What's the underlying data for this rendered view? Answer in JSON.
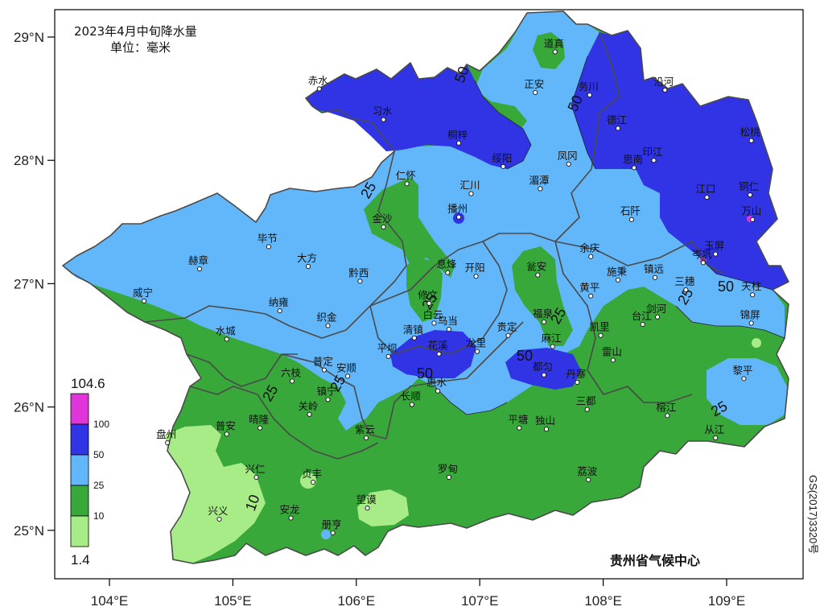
{
  "title": {
    "line1": "2023年4月中旬降水量",
    "line2": "单位：毫米"
  },
  "source": "贵州省气候中心",
  "map_code": "GS(2017)3320号",
  "colors": {
    "bg": "#ffffff",
    "c_1_10": "#a8ec88",
    "c_10_25": "#39a83a",
    "c_25_50": "#62b7fb",
    "c_50_100": "#3134e4",
    "c_100_max": "#e035d8",
    "border": "#555555"
  },
  "axes": {
    "x_ticks": [
      "104°E",
      "105°E",
      "106°E",
      "107°E",
      "108°E",
      "109°E"
    ],
    "y_ticks": [
      "29°N",
      "28°N",
      "27°N",
      "26°N",
      "25°N"
    ],
    "lon_range": [
      103.55,
      109.6
    ],
    "lat_range": [
      24.63,
      29.3
    ]
  },
  "legend": {
    "max": "104.6",
    "min": "1.4",
    "breaks": [
      "100",
      "50",
      "25",
      "10"
    ]
  },
  "contour_labels": [
    "50",
    "50",
    "50",
    "50",
    "50",
    "25",
    "25",
    "25",
    "25",
    "25",
    "25",
    "10",
    "25"
  ],
  "stations": [
    {
      "name": "赤水",
      "lon": 105.7,
      "lat": 28.58
    },
    {
      "name": "习水",
      "lon": 106.22,
      "lat": 28.33
    },
    {
      "name": "桐梓",
      "lon": 106.83,
      "lat": 28.14
    },
    {
      "name": "绥阳",
      "lon": 107.19,
      "lat": 27.95
    },
    {
      "name": "正安",
      "lon": 107.45,
      "lat": 28.55
    },
    {
      "name": "道真",
      "lon": 107.61,
      "lat": 28.88
    },
    {
      "name": "务川",
      "lon": 107.89,
      "lat": 28.53
    },
    {
      "name": "沿河",
      "lon": 108.5,
      "lat": 28.57
    },
    {
      "name": "德江",
      "lon": 108.12,
      "lat": 28.26
    },
    {
      "name": "凤冈",
      "lon": 107.72,
      "lat": 27.97
    },
    {
      "name": "湄潭",
      "lon": 107.49,
      "lat": 27.77
    },
    {
      "name": "汇川",
      "lon": 106.93,
      "lat": 27.73
    },
    {
      "name": "仁怀",
      "lon": 106.41,
      "lat": 27.81
    },
    {
      "name": "播州",
      "lon": 106.83,
      "lat": 27.54
    },
    {
      "name": "印江",
      "lon": 108.41,
      "lat": 28.0
    },
    {
      "name": "思南",
      "lon": 108.25,
      "lat": 27.94
    },
    {
      "name": "松桃",
      "lon": 109.2,
      "lat": 28.16
    },
    {
      "name": "江口",
      "lon": 108.84,
      "lat": 27.7
    },
    {
      "name": "铜仁",
      "lon": 109.19,
      "lat": 27.72
    },
    {
      "name": "万山",
      "lon": 109.21,
      "lat": 27.52
    },
    {
      "name": "石阡",
      "lon": 108.23,
      "lat": 27.52
    },
    {
      "name": "余庆",
      "lon": 107.9,
      "lat": 27.22
    },
    {
      "name": "玉屏",
      "lon": 108.91,
      "lat": 27.24
    },
    {
      "name": "岑巩",
      "lon": 108.81,
      "lat": 27.17
    },
    {
      "name": "施秉",
      "lon": 108.12,
      "lat": 27.03
    },
    {
      "name": "镇远",
      "lon": 108.42,
      "lat": 27.05
    },
    {
      "name": "三穗",
      "lon": 108.67,
      "lat": 26.95
    },
    {
      "name": "天柱",
      "lon": 109.21,
      "lat": 26.91
    },
    {
      "name": "黄平",
      "lon": 107.9,
      "lat": 26.9
    },
    {
      "name": "台江",
      "lon": 108.32,
      "lat": 26.67
    },
    {
      "name": "剑河",
      "lon": 108.44,
      "lat": 26.73
    },
    {
      "name": "锦屏",
      "lon": 109.2,
      "lat": 26.68
    },
    {
      "name": "凯里",
      "lon": 107.98,
      "lat": 26.58
    },
    {
      "name": "雷山",
      "lon": 108.08,
      "lat": 26.38
    },
    {
      "name": "黎平",
      "lon": 109.14,
      "lat": 26.23
    },
    {
      "name": "榕江",
      "lon": 108.52,
      "lat": 25.93
    },
    {
      "name": "从江",
      "lon": 108.91,
      "lat": 25.75
    },
    {
      "name": "丹寨",
      "lon": 107.79,
      "lat": 26.2
    },
    {
      "name": "三都",
      "lon": 107.87,
      "lat": 25.98
    },
    {
      "name": "都匀",
      "lon": 107.52,
      "lat": 26.26
    },
    {
      "name": "麻江",
      "lon": 107.59,
      "lat": 26.49
    },
    {
      "name": "福泉",
      "lon": 107.52,
      "lat": 26.69
    },
    {
      "name": "瓮安",
      "lon": 107.47,
      "lat": 27.07
    },
    {
      "name": "贵定",
      "lon": 107.23,
      "lat": 26.58
    },
    {
      "name": "龙里",
      "lon": 106.98,
      "lat": 26.45
    },
    {
      "name": "开阳",
      "lon": 106.97,
      "lat": 27.06
    },
    {
      "name": "息烽",
      "lon": 106.74,
      "lat": 27.09
    },
    {
      "name": "修文",
      "lon": 106.59,
      "lat": 26.84
    },
    {
      "name": "白云",
      "lon": 106.63,
      "lat": 26.68
    },
    {
      "name": "乌当",
      "lon": 106.75,
      "lat": 26.63
    },
    {
      "name": "清镇",
      "lon": 106.47,
      "lat": 26.56
    },
    {
      "name": "花溪",
      "lon": 106.67,
      "lat": 26.43
    },
    {
      "name": "惠水",
      "lon": 106.66,
      "lat": 26.13
    },
    {
      "name": "长顺",
      "lon": 106.45,
      "lat": 26.02
    },
    {
      "name": "平坝",
      "lon": 106.26,
      "lat": 26.41
    },
    {
      "name": "平塘",
      "lon": 107.32,
      "lat": 25.83
    },
    {
      "name": "独山",
      "lon": 107.54,
      "lat": 25.82
    },
    {
      "name": "荔波",
      "lon": 107.88,
      "lat": 25.41
    },
    {
      "name": "罗甸",
      "lon": 106.75,
      "lat": 25.43
    },
    {
      "name": "紫云",
      "lon": 106.08,
      "lat": 25.75
    },
    {
      "name": "望谟",
      "lon": 106.09,
      "lat": 25.18
    },
    {
      "name": "册亨",
      "lon": 105.81,
      "lat": 24.98
    },
    {
      "name": "贞丰",
      "lon": 105.65,
      "lat": 25.39
    },
    {
      "name": "安龙",
      "lon": 105.47,
      "lat": 25.1
    },
    {
      "name": "兴仁",
      "lon": 105.19,
      "lat": 25.43
    },
    {
      "name": "兴义",
      "lon": 104.89,
      "lat": 25.09
    },
    {
      "name": "普安",
      "lon": 104.95,
      "lat": 25.78
    },
    {
      "name": "晴隆",
      "lon": 105.22,
      "lat": 25.83
    },
    {
      "name": "盘州",
      "lon": 104.47,
      "lat": 25.71
    },
    {
      "name": "关岭",
      "lon": 105.62,
      "lat": 25.94
    },
    {
      "name": "镇宁",
      "lon": 105.77,
      "lat": 26.06
    },
    {
      "name": "六枝",
      "lon": 105.48,
      "lat": 26.21
    },
    {
      "name": "普定",
      "lon": 105.74,
      "lat": 26.3
    },
    {
      "name": "安顺",
      "lon": 105.93,
      "lat": 26.25
    },
    {
      "name": "水城",
      "lon": 104.95,
      "lat": 26.55
    },
    {
      "name": "纳雍",
      "lon": 105.38,
      "lat": 26.78
    },
    {
      "name": "织金",
      "lon": 105.77,
      "lat": 26.66
    },
    {
      "name": "黔西",
      "lon": 106.03,
      "lat": 27.02
    },
    {
      "name": "大方",
      "lon": 105.61,
      "lat": 27.14
    },
    {
      "name": "毕节",
      "lon": 105.29,
      "lat": 27.3
    },
    {
      "name": "赫章",
      "lon": 104.73,
      "lat": 27.12
    },
    {
      "name": "威宁",
      "lon": 104.28,
      "lat": 26.86
    },
    {
      "name": "金沙",
      "lon": 106.22,
      "lat": 27.46
    }
  ]
}
